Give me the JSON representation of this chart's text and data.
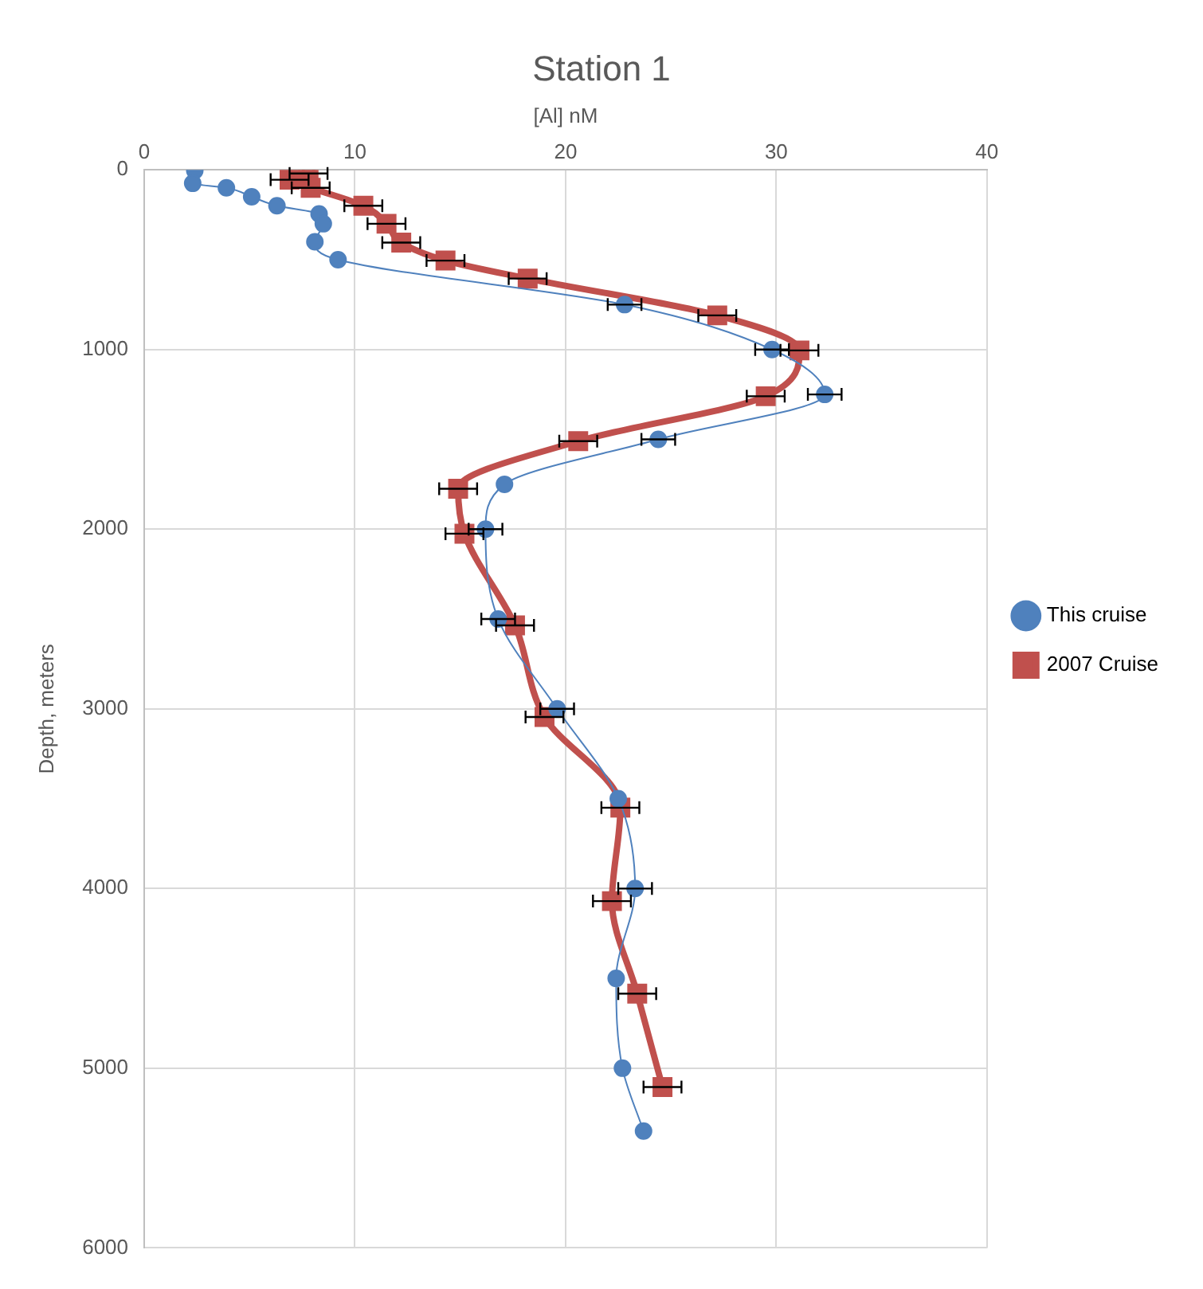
{
  "chart_data": {
    "type": "line",
    "title": "Station 1",
    "xlabel": "[Al] nM",
    "ylabel": "Depth, meters",
    "xlim": [
      0,
      40
    ],
    "xticks": [
      0,
      10,
      20,
      30,
      40
    ],
    "ylim": [
      6000,
      0
    ],
    "yticks": [
      0,
      1000,
      2000,
      3000,
      4000,
      5000,
      6000
    ],
    "grid": true,
    "legend": "right",
    "series": [
      {
        "name": "This cruise",
        "color": "#4f81bd",
        "marker": "circle",
        "x": [
          2.4,
          2.3,
          3.9,
          5.1,
          6.3,
          8.3,
          8.5,
          8.1,
          9.2,
          22.8,
          29.8,
          32.3,
          24.4,
          17.1,
          16.2,
          16.8,
          19.6,
          22.5,
          23.3,
          22.4,
          22.7,
          23.7
        ],
        "values": [
          5,
          75,
          100,
          150,
          200,
          245,
          300,
          400,
          500,
          750,
          1000,
          1250,
          1500,
          1750,
          2000,
          2500,
          3000,
          3500,
          4000,
          4500,
          5000,
          5350
        ],
        "xerrors": [
          null,
          null,
          null,
          null,
          null,
          null,
          null,
          null,
          null,
          0.8,
          0.8,
          0.8,
          0.8,
          null,
          0.8,
          0.8,
          0.8,
          null,
          0.8,
          null,
          null,
          null
        ]
      },
      {
        "name": "2007 Cruise",
        "color": "#c0504d",
        "marker": "square",
        "x": [
          7.8,
          6.9,
          7.9,
          10.4,
          11.5,
          12.2,
          14.3,
          18.2,
          27.2,
          31.1,
          29.5,
          20.6,
          14.9,
          15.2,
          17.6,
          19.0,
          22.6,
          22.2,
          23.4,
          24.6
        ],
        "values": [
          20,
          55,
          100,
          200,
          300,
          405,
          505,
          605,
          810,
          1005,
          1260,
          1510,
          1775,
          2025,
          2535,
          3045,
          3550,
          4070,
          4585,
          5105
        ],
        "xerrors": [
          0.9,
          0.9,
          0.9,
          0.9,
          0.9,
          0.9,
          0.9,
          0.9,
          0.9,
          0.9,
          0.9,
          0.9,
          0.9,
          0.9,
          0.9,
          0.9,
          0.9,
          0.9,
          0.9,
          0.9
        ]
      }
    ]
  }
}
